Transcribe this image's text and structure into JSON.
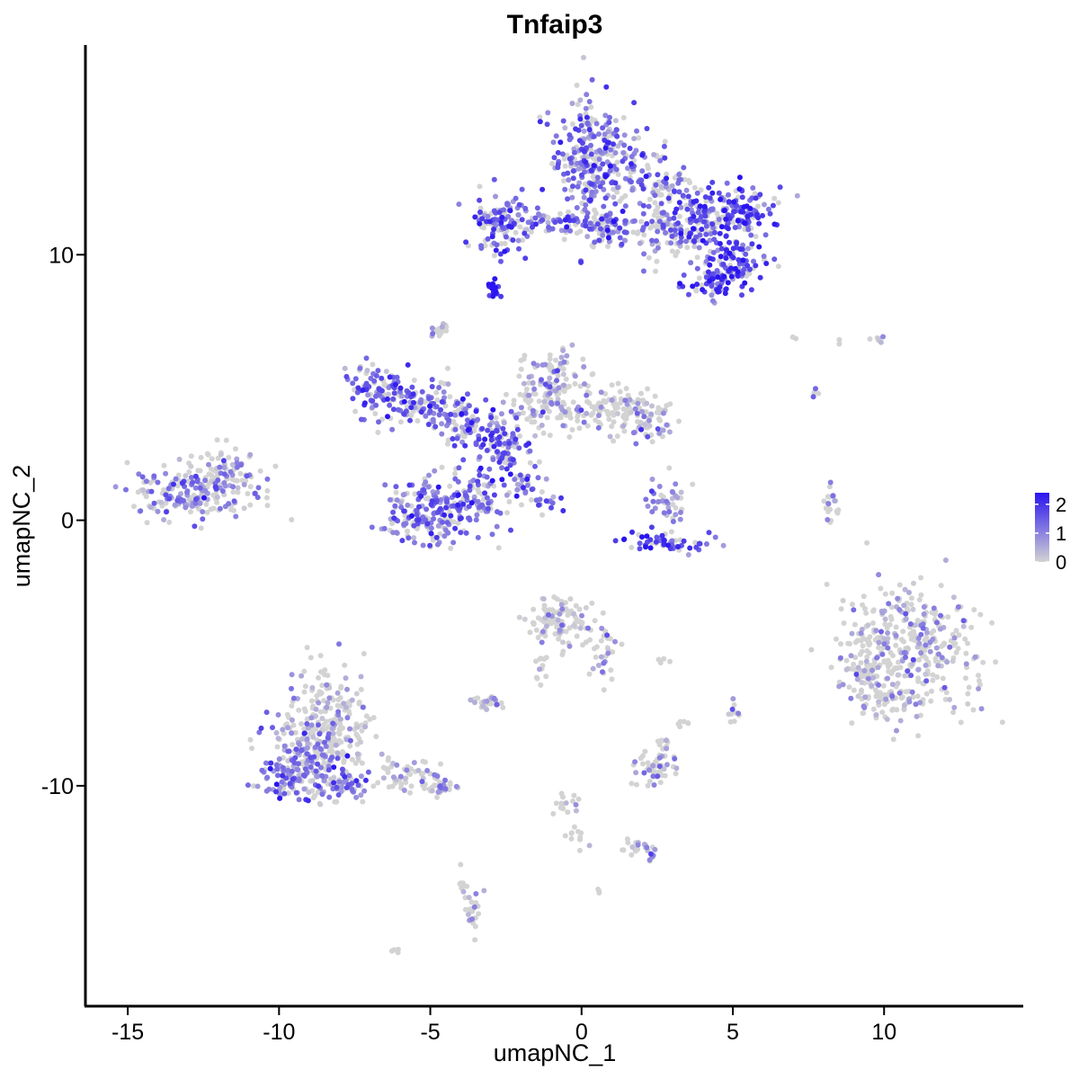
{
  "chart_data": {
    "type": "scatter",
    "title": "Tnfaip3",
    "xlabel": "umapNC_1",
    "ylabel": "umapNC_2",
    "xlim": [
      -16.4,
      14.6
    ],
    "ylim": [
      -18.3,
      17.9
    ],
    "x_ticks": [
      -15,
      -10,
      -5,
      0,
      5,
      10
    ],
    "x_tick_labels": [
      "-15",
      "-10",
      "-5",
      "0",
      "5",
      "10"
    ],
    "y_ticks": [
      -10,
      0,
      10
    ],
    "y_tick_labels": [
      "-10",
      "0",
      "10"
    ],
    "grid": false,
    "legend_position": "right",
    "color_scale": {
      "low_color": "#d3d3d3",
      "high_color": "#2a14f0",
      "min": 0,
      "max": 2.4,
      "tick_values": [
        0,
        1,
        2
      ],
      "tick_labels": [
        "0",
        "1",
        "2"
      ]
    },
    "clusters": [
      {
        "cx": 0.2,
        "cy": 14.0,
        "sx": 0.65,
        "sy": 0.9,
        "n": 150,
        "expr": 1.3
      },
      {
        "cx": 0.7,
        "cy": 13.1,
        "sx": 0.7,
        "sy": 1.0,
        "n": 150,
        "expr": 1.2
      },
      {
        "cx": 2.4,
        "cy": 12.6,
        "sx": 0.6,
        "sy": 0.8,
        "n": 90,
        "expr": 1.1
      },
      {
        "cx": 3.8,
        "cy": 11.4,
        "sx": 0.6,
        "sy": 0.6,
        "n": 120,
        "expr": 1.5
      },
      {
        "cx": 5.2,
        "cy": 11.6,
        "sx": 0.55,
        "sy": 0.5,
        "n": 120,
        "expr": 1.6
      },
      {
        "cx": 5.0,
        "cy": 9.7,
        "sx": 0.55,
        "sy": 0.45,
        "n": 90,
        "expr": 1.7
      },
      {
        "cx": 4.4,
        "cy": 8.9,
        "sx": 0.45,
        "sy": 0.3,
        "n": 60,
        "expr": 1.7
      },
      {
        "cx": -2.7,
        "cy": 11.2,
        "sx": 0.45,
        "sy": 0.55,
        "n": 110,
        "expr": 1.4
      },
      {
        "cx": -1.0,
        "cy": 11.2,
        "sx": 0.8,
        "sy": 0.2,
        "n": 60,
        "expr": 1.2
      },
      {
        "cx": 0.7,
        "cy": 11.0,
        "sx": 0.45,
        "sy": 0.35,
        "n": 70,
        "expr": 1.1
      },
      {
        "cx": 2.8,
        "cy": 10.7,
        "sx": 0.8,
        "sy": 0.5,
        "n": 60,
        "expr": 0.8
      },
      {
        "cx": -2.9,
        "cy": 8.7,
        "sx": 0.12,
        "sy": 0.15,
        "n": 18,
        "expr": 2.3
      },
      {
        "cx": -12.7,
        "cy": 1.1,
        "sx": 1.1,
        "sy": 0.5,
        "n": 210,
        "expr": 1.0
      },
      {
        "cx": -11.9,
        "cy": 1.9,
        "sx": 0.5,
        "sy": 0.4,
        "n": 50,
        "expr": 0.6
      },
      {
        "cx": -6.8,
        "cy": 5.0,
        "sx": 0.55,
        "sy": 0.6,
        "n": 80,
        "expr": 1.3
      },
      {
        "cx": -5.4,
        "cy": 4.4,
        "sx": 0.7,
        "sy": 0.4,
        "n": 90,
        "expr": 1.2
      },
      {
        "cx": -3.8,
        "cy": 3.7,
        "sx": 0.6,
        "sy": 0.45,
        "n": 90,
        "expr": 1.2
      },
      {
        "cx": -2.5,
        "cy": 2.8,
        "sx": 0.5,
        "sy": 0.6,
        "n": 90,
        "expr": 1.4
      },
      {
        "cx": -4.6,
        "cy": 0.4,
        "sx": 0.55,
        "sy": 0.7,
        "n": 120,
        "expr": 1.3
      },
      {
        "cx": -5.6,
        "cy": 0.2,
        "sx": 0.5,
        "sy": 0.5,
        "n": 80,
        "expr": 1.2
      },
      {
        "cx": -3.4,
        "cy": 1.2,
        "sx": 0.45,
        "sy": 0.8,
        "n": 80,
        "expr": 1.4
      },
      {
        "cx": -1.9,
        "cy": 1.3,
        "sx": 0.35,
        "sy": 0.3,
        "n": 25,
        "expr": 1.2
      },
      {
        "cx": -1.2,
        "cy": 0.7,
        "sx": 0.3,
        "sy": 0.25,
        "n": 15,
        "expr": 1.3
      },
      {
        "cx": -1.3,
        "cy": 4.5,
        "sx": 0.55,
        "sy": 0.6,
        "n": 90,
        "expr": 0.6
      },
      {
        "cx": -0.8,
        "cy": 5.6,
        "sx": 0.45,
        "sy": 0.45,
        "n": 60,
        "expr": 0.6
      },
      {
        "cx": 0.3,
        "cy": 4.2,
        "sx": 0.6,
        "sy": 0.5,
        "n": 70,
        "expr": 0.5
      },
      {
        "cx": 1.7,
        "cy": 4.1,
        "sx": 0.5,
        "sy": 0.45,
        "n": 70,
        "expr": 0.4
      },
      {
        "cx": 2.5,
        "cy": 3.6,
        "sx": 0.3,
        "sy": 0.35,
        "n": 30,
        "expr": 0.6
      },
      {
        "cx": -4.7,
        "cy": 7.2,
        "sx": 0.2,
        "sy": 0.2,
        "n": 15,
        "expr": 0.3
      },
      {
        "cx": 2.8,
        "cy": 0.8,
        "sx": 0.35,
        "sy": 0.4,
        "n": 40,
        "expr": 0.9
      },
      {
        "cx": 2.9,
        "cy": -0.8,
        "sx": 0.9,
        "sy": 0.2,
        "n": 55,
        "expr": 1.7
      },
      {
        "cx": 8.2,
        "cy": 0.5,
        "sx": 0.15,
        "sy": 0.4,
        "n": 22,
        "expr": 0.5
      },
      {
        "cx": 10.8,
        "cy": -4.8,
        "sx": 1.1,
        "sy": 1.3,
        "n": 370,
        "expr": 0.45
      },
      {
        "cx": 9.5,
        "cy": -5.6,
        "sx": 0.45,
        "sy": 0.6,
        "n": 60,
        "expr": 0.3
      },
      {
        "cx": 9.8,
        "cy": -6.8,
        "sx": 0.6,
        "sy": 0.2,
        "n": 40,
        "expr": 0.3
      },
      {
        "cx": -0.7,
        "cy": -3.8,
        "sx": 0.55,
        "sy": 0.45,
        "n": 110,
        "expr": 0.3
      },
      {
        "cx": 0.8,
        "cy": -4.9,
        "sx": 0.3,
        "sy": 0.5,
        "n": 30,
        "expr": 0.4
      },
      {
        "cx": -3.2,
        "cy": -6.8,
        "sx": 0.35,
        "sy": 0.15,
        "n": 30,
        "expr": 0.3
      },
      {
        "cx": -1.3,
        "cy": -5.4,
        "sx": 0.15,
        "sy": 0.35,
        "n": 12,
        "expr": 0.2
      },
      {
        "cx": 2.4,
        "cy": -9.4,
        "sx": 0.35,
        "sy": 0.3,
        "n": 50,
        "expr": 0.5
      },
      {
        "cx": 2.7,
        "cy": -8.5,
        "sx": 0.15,
        "sy": 0.2,
        "n": 12,
        "expr": 0.3
      },
      {
        "cx": 3.4,
        "cy": -7.6,
        "sx": 0.1,
        "sy": 0.1,
        "n": 6,
        "expr": 0.2
      },
      {
        "cx": 5.0,
        "cy": -7.2,
        "sx": 0.12,
        "sy": 0.2,
        "n": 10,
        "expr": 0.3
      },
      {
        "cx": 2.7,
        "cy": -5.3,
        "sx": 0.1,
        "sy": 0.05,
        "n": 4,
        "expr": 0.1
      },
      {
        "cx": -8.3,
        "cy": -7.5,
        "sx": 0.7,
        "sy": 1.1,
        "n": 200,
        "expr": 0.4
      },
      {
        "cx": -9.0,
        "cy": -9.0,
        "sx": 0.7,
        "sy": 0.8,
        "n": 180,
        "expr": 1.0
      },
      {
        "cx": -9.7,
        "cy": -9.6,
        "sx": 0.5,
        "sy": 0.4,
        "n": 70,
        "expr": 1.3
      },
      {
        "cx": -7.9,
        "cy": -9.9,
        "sx": 0.45,
        "sy": 0.25,
        "n": 50,
        "expr": 1.0
      },
      {
        "cx": -5.9,
        "cy": -9.6,
        "sx": 0.7,
        "sy": 0.3,
        "n": 60,
        "expr": 0.5
      },
      {
        "cx": -4.7,
        "cy": -10.1,
        "sx": 0.4,
        "sy": 0.2,
        "n": 25,
        "expr": 0.7
      },
      {
        "cx": -3.6,
        "cy": -14.8,
        "sx": 0.15,
        "sy": 0.4,
        "n": 25,
        "expr": 0.3
      },
      {
        "cx": -3.9,
        "cy": -13.8,
        "sx": 0.08,
        "sy": 0.3,
        "n": 8,
        "expr": 0.2
      },
      {
        "cx": -0.4,
        "cy": -10.8,
        "sx": 0.2,
        "sy": 0.35,
        "n": 15,
        "expr": 0.3
      },
      {
        "cx": -0.2,
        "cy": -11.8,
        "sx": 0.2,
        "sy": 0.2,
        "n": 10,
        "expr": 0.4
      },
      {
        "cx": 1.6,
        "cy": -12.3,
        "sx": 0.6,
        "sy": 0.15,
        "n": 20,
        "expr": 0.5
      },
      {
        "cx": 2.3,
        "cy": -12.7,
        "sx": 0.1,
        "sy": 0.1,
        "n": 6,
        "expr": 1.0
      },
      {
        "cx": 0.6,
        "cy": -14.0,
        "sx": 0.05,
        "sy": 0.05,
        "n": 3,
        "expr": 0.3
      },
      {
        "cx": -6.1,
        "cy": -16.2,
        "sx": 0.06,
        "sy": 0.05,
        "n": 4,
        "expr": 0.3
      },
      {
        "cx": 7.7,
        "cy": 4.8,
        "sx": 0.05,
        "sy": 0.12,
        "n": 4,
        "expr": 1.3
      },
      {
        "cx": 9.9,
        "cy": 6.7,
        "sx": 0.15,
        "sy": 0.12,
        "n": 6,
        "expr": 1.0
      },
      {
        "cx": 7.0,
        "cy": 6.9,
        "sx": 0.05,
        "sy": 0.05,
        "n": 2,
        "expr": 0.1
      },
      {
        "cx": 8.5,
        "cy": 6.7,
        "sx": 0.05,
        "sy": 0.05,
        "n": 2,
        "expr": 0.1
      }
    ]
  }
}
